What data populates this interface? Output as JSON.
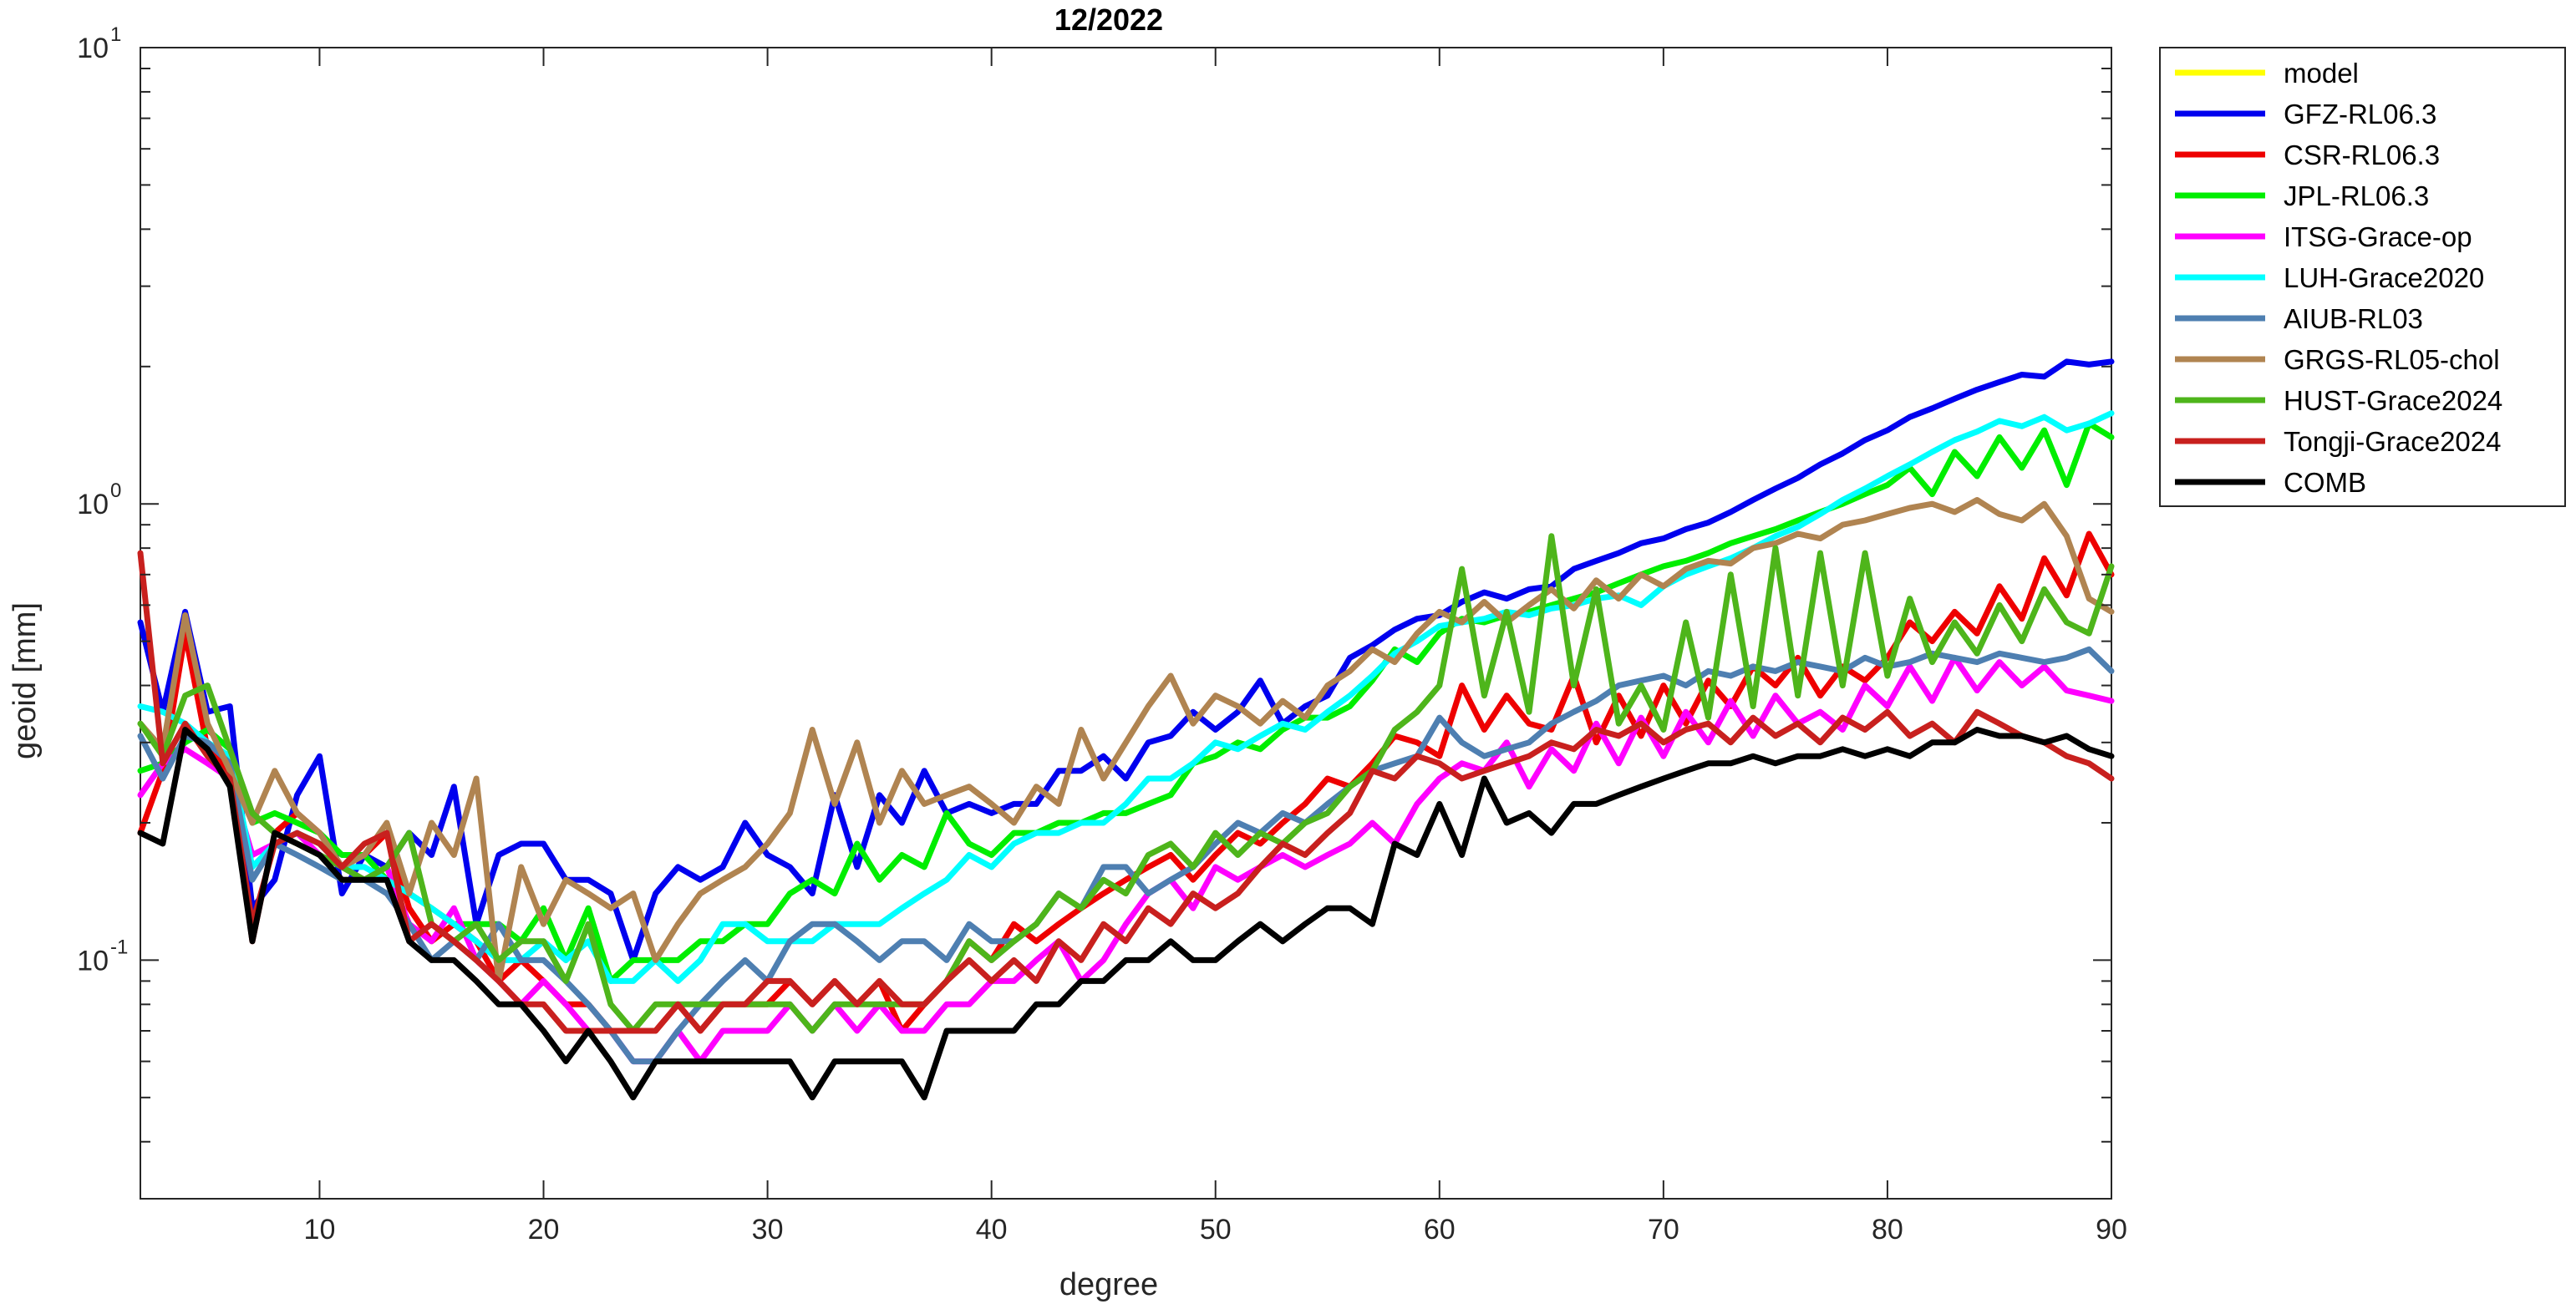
{
  "chart_data": {
    "type": "line",
    "title": "12/2022",
    "xlabel": "degree",
    "ylabel": "geoid [mm]",
    "xlim": [
      2,
      90
    ],
    "ylim": [
      0.03,
      10
    ],
    "yscale": "log",
    "grid": false,
    "legend_position": "outside-top-right",
    "x_ticks": [
      10,
      20,
      30,
      40,
      50,
      60,
      70,
      80,
      90
    ],
    "y_ticks": [
      {
        "value": 0.1,
        "base": "10",
        "exp": "-1"
      },
      {
        "value": 1,
        "base": "10",
        "exp": "0"
      },
      {
        "value": 10,
        "base": "10",
        "exp": "1"
      }
    ],
    "x_start": 2,
    "series": [
      {
        "name": "model",
        "color": "#ffff00",
        "values": []
      },
      {
        "name": "GFZ-RL06.3",
        "color": "#0000ee",
        "values": [
          0.55,
          0.35,
          0.58,
          0.35,
          0.36,
          0.13,
          0.15,
          0.23,
          0.28,
          0.14,
          0.17,
          0.16,
          0.19,
          0.17,
          0.24,
          0.12,
          0.17,
          0.18,
          0.18,
          0.15,
          0.15,
          0.14,
          0.1,
          0.14,
          0.16,
          0.15,
          0.16,
          0.2,
          0.17,
          0.16,
          0.14,
          0.23,
          0.16,
          0.23,
          0.2,
          0.26,
          0.21,
          0.22,
          0.21,
          0.22,
          0.22,
          0.26,
          0.26,
          0.28,
          0.25,
          0.3,
          0.31,
          0.35,
          0.32,
          0.35,
          0.41,
          0.33,
          0.36,
          0.38,
          0.46,
          0.49,
          0.53,
          0.56,
          0.57,
          0.61,
          0.64,
          0.62,
          0.65,
          0.66,
          0.72,
          0.75,
          0.78,
          0.82,
          0.84,
          0.88,
          0.91,
          0.96,
          1.02,
          1.08,
          1.14,
          1.22,
          1.29,
          1.38,
          1.45,
          1.55,
          1.62,
          1.7,
          1.78,
          1.85,
          1.92,
          1.9,
          2.05,
          2.02,
          2.05
        ]
      },
      {
        "name": "CSR-RL06.3",
        "color": "#ee0000",
        "values": [
          0.19,
          0.26,
          0.52,
          0.29,
          0.26,
          0.11,
          0.19,
          0.21,
          0.19,
          0.16,
          0.17,
          0.19,
          0.13,
          0.11,
          0.12,
          0.11,
          0.09,
          0.1,
          0.09,
          0.08,
          0.08,
          0.07,
          0.07,
          0.07,
          0.08,
          0.07,
          0.08,
          0.08,
          0.08,
          0.09,
          0.08,
          0.09,
          0.08,
          0.09,
          0.07,
          0.08,
          0.09,
          0.11,
          0.1,
          0.12,
          0.11,
          0.12,
          0.13,
          0.14,
          0.15,
          0.16,
          0.17,
          0.15,
          0.17,
          0.19,
          0.18,
          0.2,
          0.22,
          0.25,
          0.24,
          0.27,
          0.31,
          0.3,
          0.28,
          0.4,
          0.32,
          0.38,
          0.33,
          0.32,
          0.42,
          0.3,
          0.38,
          0.31,
          0.4,
          0.33,
          0.41,
          0.36,
          0.44,
          0.4,
          0.46,
          0.38,
          0.44,
          0.41,
          0.46,
          0.55,
          0.5,
          0.58,
          0.52,
          0.66,
          0.56,
          0.76,
          0.63,
          0.86,
          0.7
        ]
      },
      {
        "name": "JPL-RL06.3",
        "color": "#00ee00",
        "values": [
          0.26,
          0.27,
          0.3,
          0.32,
          0.29,
          0.2,
          0.21,
          0.2,
          0.19,
          0.17,
          0.17,
          0.15,
          0.14,
          0.13,
          0.12,
          0.12,
          0.12,
          0.11,
          0.13,
          0.1,
          0.13,
          0.09,
          0.1,
          0.1,
          0.1,
          0.11,
          0.11,
          0.12,
          0.12,
          0.14,
          0.15,
          0.14,
          0.18,
          0.15,
          0.17,
          0.16,
          0.21,
          0.18,
          0.17,
          0.19,
          0.19,
          0.2,
          0.2,
          0.21,
          0.21,
          0.22,
          0.23,
          0.27,
          0.28,
          0.3,
          0.29,
          0.32,
          0.34,
          0.34,
          0.36,
          0.41,
          0.48,
          0.45,
          0.52,
          0.56,
          0.55,
          0.57,
          0.58,
          0.6,
          0.62,
          0.64,
          0.67,
          0.7,
          0.73,
          0.75,
          0.78,
          0.82,
          0.85,
          0.88,
          0.92,
          0.96,
          1.0,
          1.05,
          1.1,
          1.2,
          1.05,
          1.3,
          1.15,
          1.4,
          1.2,
          1.45,
          1.1,
          1.5,
          1.4
        ]
      },
      {
        "name": "ITSG-Grace-op",
        "color": "#ff00ff",
        "values": [
          0.23,
          0.27,
          0.29,
          0.27,
          0.25,
          0.17,
          0.18,
          0.19,
          0.17,
          0.16,
          0.15,
          0.16,
          0.12,
          0.11,
          0.13,
          0.1,
          0.09,
          0.08,
          0.09,
          0.08,
          0.07,
          0.07,
          0.06,
          0.06,
          0.07,
          0.06,
          0.07,
          0.07,
          0.07,
          0.08,
          0.07,
          0.08,
          0.07,
          0.08,
          0.07,
          0.07,
          0.08,
          0.08,
          0.09,
          0.09,
          0.1,
          0.11,
          0.09,
          0.1,
          0.12,
          0.14,
          0.15,
          0.13,
          0.16,
          0.15,
          0.16,
          0.17,
          0.16,
          0.17,
          0.18,
          0.2,
          0.18,
          0.22,
          0.25,
          0.27,
          0.26,
          0.3,
          0.24,
          0.29,
          0.26,
          0.33,
          0.27,
          0.34,
          0.28,
          0.35,
          0.3,
          0.37,
          0.31,
          0.38,
          0.33,
          0.35,
          0.32,
          0.4,
          0.36,
          0.44,
          0.37,
          0.46,
          0.39,
          0.45,
          0.4,
          0.44,
          0.39,
          0.38,
          0.37
        ]
      },
      {
        "name": "LUH-Grace2020",
        "color": "#00ffff",
        "values": [
          0.36,
          0.35,
          0.33,
          0.3,
          0.28,
          0.16,
          0.18,
          0.19,
          0.18,
          0.16,
          0.16,
          0.15,
          0.14,
          0.13,
          0.12,
          0.11,
          0.1,
          0.1,
          0.11,
          0.1,
          0.11,
          0.09,
          0.09,
          0.1,
          0.09,
          0.1,
          0.12,
          0.12,
          0.11,
          0.11,
          0.11,
          0.12,
          0.12,
          0.12,
          0.13,
          0.14,
          0.15,
          0.17,
          0.16,
          0.18,
          0.19,
          0.19,
          0.2,
          0.2,
          0.22,
          0.25,
          0.25,
          0.27,
          0.3,
          0.29,
          0.31,
          0.33,
          0.32,
          0.35,
          0.38,
          0.42,
          0.47,
          0.5,
          0.54,
          0.55,
          0.56,
          0.58,
          0.57,
          0.59,
          0.6,
          0.62,
          0.63,
          0.6,
          0.66,
          0.7,
          0.73,
          0.76,
          0.8,
          0.85,
          0.89,
          0.95,
          1.02,
          1.08,
          1.15,
          1.22,
          1.3,
          1.38,
          1.44,
          1.52,
          1.48,
          1.55,
          1.45,
          1.5,
          1.58
        ]
      },
      {
        "name": "AIUB-RL03",
        "color": "#4e7fb1",
        "values": [
          0.31,
          0.25,
          0.31,
          0.3,
          0.27,
          0.15,
          0.18,
          0.17,
          0.16,
          0.15,
          0.15,
          0.14,
          0.12,
          0.1,
          0.11,
          0.1,
          0.12,
          0.1,
          0.1,
          0.09,
          0.08,
          0.07,
          0.06,
          0.06,
          0.07,
          0.08,
          0.09,
          0.1,
          0.09,
          0.11,
          0.12,
          0.12,
          0.11,
          0.1,
          0.11,
          0.11,
          0.1,
          0.12,
          0.11,
          0.11,
          0.12,
          0.14,
          0.13,
          0.16,
          0.16,
          0.14,
          0.15,
          0.16,
          0.18,
          0.2,
          0.19,
          0.21,
          0.2,
          0.22,
          0.24,
          0.26,
          0.27,
          0.28,
          0.34,
          0.3,
          0.28,
          0.29,
          0.3,
          0.33,
          0.35,
          0.37,
          0.4,
          0.41,
          0.42,
          0.4,
          0.43,
          0.42,
          0.44,
          0.43,
          0.45,
          0.44,
          0.43,
          0.46,
          0.44,
          0.45,
          0.47,
          0.46,
          0.45,
          0.47,
          0.46,
          0.45,
          0.46,
          0.48,
          0.43
        ]
      },
      {
        "name": "GRGS-RL05-chol",
        "color": "#b08451",
        "values": [
          0.33,
          0.29,
          0.57,
          0.33,
          0.26,
          0.2,
          0.26,
          0.21,
          0.19,
          0.16,
          0.17,
          0.2,
          0.14,
          0.2,
          0.17,
          0.25,
          0.09,
          0.16,
          0.12,
          0.15,
          0.14,
          0.13,
          0.14,
          0.1,
          0.12,
          0.14,
          0.15,
          0.16,
          0.18,
          0.21,
          0.32,
          0.22,
          0.3,
          0.2,
          0.26,
          0.22,
          0.23,
          0.24,
          0.22,
          0.2,
          0.24,
          0.22,
          0.32,
          0.25,
          0.3,
          0.36,
          0.42,
          0.33,
          0.38,
          0.36,
          0.33,
          0.37,
          0.34,
          0.4,
          0.43,
          0.48,
          0.45,
          0.52,
          0.58,
          0.55,
          0.61,
          0.55,
          0.6,
          0.65,
          0.59,
          0.68,
          0.62,
          0.7,
          0.66,
          0.72,
          0.75,
          0.74,
          0.8,
          0.82,
          0.86,
          0.84,
          0.9,
          0.92,
          0.95,
          0.98,
          1.0,
          0.96,
          1.02,
          0.95,
          0.92,
          1.0,
          0.85,
          0.62,
          0.58
        ]
      },
      {
        "name": "HUST-Grace2024",
        "color": "#4eb51b",
        "values": [
          0.33,
          0.28,
          0.38,
          0.4,
          0.29,
          0.21,
          0.19,
          0.18,
          0.17,
          0.16,
          0.15,
          0.16,
          0.19,
          0.12,
          0.11,
          0.12,
          0.1,
          0.11,
          0.11,
          0.09,
          0.12,
          0.08,
          0.07,
          0.08,
          0.08,
          0.08,
          0.08,
          0.08,
          0.08,
          0.08,
          0.07,
          0.08,
          0.08,
          0.08,
          0.08,
          0.08,
          0.09,
          0.11,
          0.1,
          0.11,
          0.12,
          0.14,
          0.13,
          0.15,
          0.14,
          0.17,
          0.18,
          0.16,
          0.19,
          0.17,
          0.19,
          0.18,
          0.2,
          0.21,
          0.24,
          0.26,
          0.32,
          0.35,
          0.4,
          0.72,
          0.38,
          0.58,
          0.35,
          0.85,
          0.4,
          0.65,
          0.33,
          0.4,
          0.32,
          0.55,
          0.34,
          0.7,
          0.36,
          0.8,
          0.38,
          0.78,
          0.4,
          0.78,
          0.42,
          0.62,
          0.45,
          0.55,
          0.47,
          0.6,
          0.5,
          0.65,
          0.55,
          0.52,
          0.73
        ]
      },
      {
        "name": "Tongji-Grace2024",
        "color": "#c8201e",
        "values": [
          0.78,
          0.27,
          0.33,
          0.28,
          0.25,
          0.12,
          0.18,
          0.19,
          0.18,
          0.16,
          0.18,
          0.19,
          0.11,
          0.12,
          0.11,
          0.1,
          0.09,
          0.08,
          0.08,
          0.07,
          0.07,
          0.07,
          0.07,
          0.07,
          0.08,
          0.07,
          0.08,
          0.08,
          0.09,
          0.09,
          0.08,
          0.09,
          0.08,
          0.09,
          0.08,
          0.08,
          0.09,
          0.1,
          0.09,
          0.1,
          0.09,
          0.11,
          0.1,
          0.12,
          0.11,
          0.13,
          0.12,
          0.14,
          0.13,
          0.14,
          0.16,
          0.18,
          0.17,
          0.19,
          0.21,
          0.26,
          0.25,
          0.28,
          0.27,
          0.25,
          0.26,
          0.27,
          0.28,
          0.3,
          0.29,
          0.32,
          0.31,
          0.33,
          0.3,
          0.32,
          0.33,
          0.3,
          0.34,
          0.31,
          0.33,
          0.3,
          0.34,
          0.32,
          0.35,
          0.31,
          0.33,
          0.3,
          0.35,
          0.33,
          0.31,
          0.3,
          0.28,
          0.27,
          0.25
        ]
      },
      {
        "name": "COMB",
        "color": "#000000",
        "values": [
          0.19,
          0.18,
          0.32,
          0.29,
          0.24,
          0.11,
          0.19,
          0.18,
          0.17,
          0.15,
          0.15,
          0.15,
          0.11,
          0.1,
          0.1,
          0.09,
          0.08,
          0.08,
          0.07,
          0.06,
          0.07,
          0.06,
          0.05,
          0.06,
          0.06,
          0.06,
          0.06,
          0.06,
          0.06,
          0.06,
          0.05,
          0.06,
          0.06,
          0.06,
          0.06,
          0.05,
          0.07,
          0.07,
          0.07,
          0.07,
          0.08,
          0.08,
          0.09,
          0.09,
          0.1,
          0.1,
          0.11,
          0.1,
          0.1,
          0.11,
          0.12,
          0.11,
          0.12,
          0.13,
          0.13,
          0.12,
          0.18,
          0.17,
          0.22,
          0.17,
          0.25,
          0.2,
          0.21,
          0.19,
          0.22,
          0.22,
          0.23,
          0.24,
          0.25,
          0.26,
          0.27,
          0.27,
          0.28,
          0.27,
          0.28,
          0.28,
          0.29,
          0.28,
          0.29,
          0.28,
          0.3,
          0.3,
          0.32,
          0.31,
          0.31,
          0.3,
          0.31,
          0.29,
          0.28
        ]
      }
    ]
  }
}
